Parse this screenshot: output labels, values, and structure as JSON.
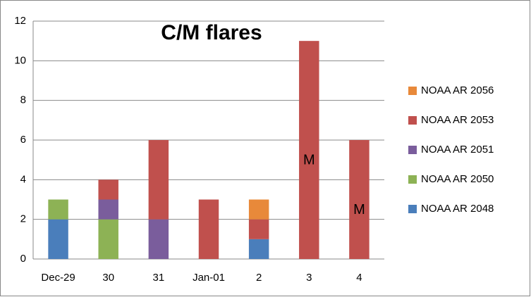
{
  "chart_data": {
    "type": "stacked_bar",
    "title": "C/M flares",
    "categories": [
      "Dec-29",
      "30",
      "31",
      "Jan-01",
      "2",
      "3",
      "4"
    ],
    "series": [
      {
        "name": "NOAA AR 2048",
        "color": "#4a7ebb",
        "values": [
          2,
          0,
          0,
          0,
          1,
          0,
          0
        ]
      },
      {
        "name": "NOAA AR 2050",
        "color": "#8db255",
        "values": [
          1,
          2,
          0,
          0,
          0,
          0,
          0
        ]
      },
      {
        "name": "NOAA AR 2051",
        "color": "#7a5d9c",
        "values": [
          0,
          1,
          2,
          0,
          0,
          0,
          0
        ]
      },
      {
        "name": "NOAA AR 2053",
        "color": "#c0504d",
        "values": [
          0,
          1,
          4,
          3,
          1,
          11,
          6
        ]
      },
      {
        "name": "NOAA AR 2056",
        "color": "#e8893a",
        "values": [
          0,
          0,
          0,
          0,
          1,
          0,
          0
        ]
      }
    ],
    "annotations": [
      {
        "text": "M",
        "category": 5
      },
      {
        "text": "M",
        "category": 6
      }
    ],
    "ylim": [
      0,
      12
    ],
    "yticks": [
      0,
      2,
      4,
      6,
      8,
      10,
      12
    ],
    "grid": true,
    "legend": "right"
  }
}
